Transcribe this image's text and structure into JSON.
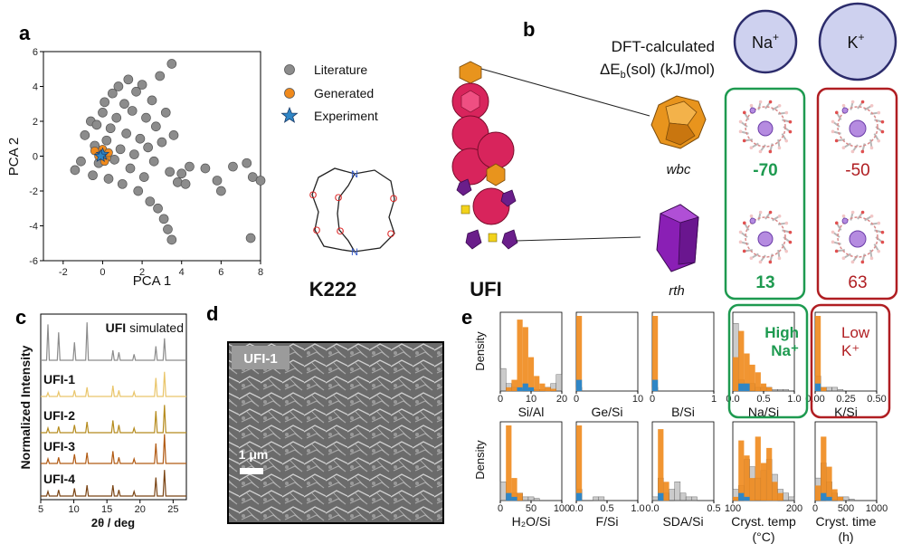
{
  "panels": {
    "a": "a",
    "b": "b",
    "c": "c",
    "d": "d",
    "e": "e"
  },
  "colors": {
    "literature": "#8c8c8c",
    "generated": "#f08a1c",
    "experiment": "#2f86c6",
    "green": "#1e9a50",
    "red": "#b01e22",
    "ion_fill": "#ced1ef",
    "ion_stroke": "#2c2c6c"
  },
  "chart_data": [
    {
      "id": "pca",
      "type": "scatter",
      "xlabel": "PCA 1",
      "ylabel": "PCA 2",
      "xlim": [
        -3,
        8
      ],
      "ylim": [
        -6,
        6
      ],
      "xticks": [
        "-2",
        "0",
        "2",
        "4",
        "6",
        "8"
      ],
      "yticks": [
        "-6",
        "-4",
        "-2",
        "0",
        "2",
        "4",
        "6"
      ],
      "legend": [
        "Literature",
        "Generated",
        "Experiment"
      ],
      "literature": [
        [
          -1.4,
          -0.8
        ],
        [
          -1.1,
          -0.3
        ],
        [
          -0.9,
          1.2
        ],
        [
          -0.6,
          2.0
        ],
        [
          -0.5,
          -1.1
        ],
        [
          -0.4,
          0.6
        ],
        [
          -0.3,
          1.8
        ],
        [
          -0.2,
          -0.4
        ],
        [
          0.0,
          2.5
        ],
        [
          0.1,
          3.1
        ],
        [
          0.2,
          0.9
        ],
        [
          0.3,
          -1.3
        ],
        [
          0.4,
          1.6
        ],
        [
          0.5,
          3.6
        ],
        [
          0.6,
          -0.2
        ],
        [
          0.7,
          2.2
        ],
        [
          0.8,
          4.0
        ],
        [
          0.9,
          0.4
        ],
        [
          1.0,
          -1.6
        ],
        [
          1.1,
          3.0
        ],
        [
          1.2,
          1.3
        ],
        [
          1.3,
          4.4
        ],
        [
          1.4,
          -0.7
        ],
        [
          1.5,
          2.6
        ],
        [
          1.6,
          0.1
        ],
        [
          1.7,
          3.7
        ],
        [
          1.8,
          -2.0
        ],
        [
          1.9,
          1.0
        ],
        [
          2.0,
          4.1
        ],
        [
          2.1,
          -1.2
        ],
        [
          2.2,
          2.2
        ],
        [
          2.3,
          0.5
        ],
        [
          2.4,
          -2.6
        ],
        [
          2.5,
          3.2
        ],
        [
          2.6,
          -0.3
        ],
        [
          2.7,
          1.7
        ],
        [
          2.8,
          -3.0
        ],
        [
          2.9,
          4.6
        ],
        [
          3.0,
          0.8
        ],
        [
          3.1,
          -3.6
        ],
        [
          3.2,
          2.5
        ],
        [
          3.3,
          -4.2
        ],
        [
          3.4,
          -0.9
        ],
        [
          3.5,
          5.3
        ],
        [
          3.5,
          -4.8
        ],
        [
          3.6,
          1.2
        ],
        [
          3.8,
          -1.5
        ],
        [
          4.0,
          -1.0
        ],
        [
          4.2,
          -1.6
        ],
        [
          4.4,
          -0.6
        ],
        [
          5.2,
          -0.7
        ],
        [
          5.8,
          -1.4
        ],
        [
          6.0,
          -2.0
        ],
        [
          6.6,
          -0.6
        ],
        [
          7.3,
          -0.4
        ],
        [
          7.5,
          -4.7
        ],
        [
          7.6,
          -1.2
        ],
        [
          8.0,
          -1.4
        ]
      ],
      "generated": [
        [
          -0.4,
          0.3
        ],
        [
          -0.2,
          0.0
        ],
        [
          0.0,
          0.4
        ],
        [
          0.2,
          -0.1
        ],
        [
          0.3,
          0.2
        ],
        [
          0.1,
          -0.3
        ]
      ],
      "experiment": [
        [
          0.0,
          0.1
        ],
        [
          -0.1,
          0.0
        ]
      ]
    },
    {
      "id": "density",
      "type": "histogram",
      "ylabel": "Density",
      "subplots": [
        {
          "xlabel": "Si/Al",
          "xticks": [
            "0",
            "10",
            "20"
          ],
          "gray": [
            0.3,
            0.1,
            0.05,
            0.02,
            0.02,
            0.02,
            0.02,
            0.02,
            0.05,
            0.1,
            0.22
          ],
          "orange": [
            0,
            0.05,
            0.15,
            0.95,
            0.85,
            0.45,
            0.2,
            0.1,
            0.05,
            0.03,
            0
          ],
          "blue": [
            0,
            0,
            0,
            0.05,
            0.1,
            0.05,
            0,
            0,
            0,
            0,
            0
          ]
        },
        {
          "xlabel": "Ge/Si",
          "xticks": [
            "0",
            "10"
          ],
          "gray": [
            0.05,
            0,
            0,
            0,
            0,
            0,
            0,
            0,
            0,
            0,
            0
          ],
          "orange": [
            1.0,
            0,
            0,
            0,
            0,
            0,
            0,
            0,
            0,
            0,
            0
          ],
          "blue": [
            0.15,
            0,
            0,
            0,
            0,
            0,
            0,
            0,
            0,
            0,
            0
          ]
        },
        {
          "xlabel": "B/Si",
          "xticks": [
            "0",
            "1"
          ],
          "gray": [
            0.05,
            0,
            0,
            0,
            0,
            0,
            0,
            0,
            0,
            0,
            0
          ],
          "orange": [
            1.0,
            0,
            0,
            0,
            0,
            0,
            0,
            0,
            0,
            0,
            0
          ],
          "blue": [
            0.15,
            0,
            0,
            0,
            0,
            0,
            0,
            0,
            0,
            0,
            0
          ]
        },
        {
          "xlabel": "Na/Si",
          "xticks": [
            "0.0",
            "0.5",
            "1.0"
          ],
          "gray": [
            0.9,
            0.15,
            0.1,
            0.1,
            0.05,
            0.05,
            0.05,
            0.02,
            0.02,
            0.02,
            0
          ],
          "orange": [
            0.45,
            0.8,
            0.5,
            0.35,
            0.25,
            0.1,
            0.05,
            0,
            0,
            0,
            0
          ],
          "blue": [
            0,
            0.1,
            0.1,
            0,
            0,
            0,
            0,
            0,
            0,
            0,
            0
          ]
        },
        {
          "xlabel": "K/Si",
          "xticks": [
            "0.00",
            "0.25",
            "0.50"
          ],
          "gray": [
            0.2,
            0.05,
            0.05,
            0.05,
            0.02,
            0,
            0,
            0,
            0,
            0,
            0
          ],
          "orange": [
            1.0,
            0.05,
            0,
            0,
            0,
            0,
            0,
            0,
            0,
            0,
            0
          ],
          "blue": [
            0.1,
            0,
            0,
            0,
            0,
            0,
            0,
            0,
            0,
            0,
            0
          ]
        },
        {
          "xlabel": "H₂O/Si",
          "xticks": [
            "0",
            "50",
            "100"
          ],
          "gray": [
            0.25,
            0.05,
            0.1,
            0.1,
            0.05,
            0.05,
            0.03,
            0,
            0,
            0,
            0
          ],
          "orange": [
            0,
            1.0,
            0.3,
            0.1,
            0,
            0,
            0,
            0,
            0,
            0,
            0
          ],
          "blue": [
            0,
            0.1,
            0.05,
            0,
            0,
            0,
            0,
            0,
            0,
            0,
            0
          ]
        },
        {
          "xlabel": "F/Si",
          "xticks": [
            "0.0",
            "0.5",
            "1.0"
          ],
          "gray": [
            0.15,
            0,
            0,
            0.05,
            0.05,
            0,
            0,
            0,
            0,
            0,
            0
          ],
          "orange": [
            1.0,
            0,
            0,
            0,
            0,
            0,
            0,
            0,
            0,
            0,
            0
          ],
          "blue": [
            0.1,
            0,
            0,
            0,
            0,
            0,
            0,
            0,
            0,
            0,
            0
          ]
        },
        {
          "xlabel": "SDA/Si",
          "xticks": [
            "0.0",
            "0.5"
          ],
          "gray": [
            0.05,
            0.3,
            0.1,
            0.15,
            0.25,
            0.1,
            0.05,
            0.05,
            0,
            0,
            0
          ],
          "orange": [
            0,
            0.95,
            0.25,
            0,
            0,
            0,
            0,
            0,
            0,
            0,
            0
          ],
          "blue": [
            0,
            0.1,
            0,
            0,
            0,
            0,
            0,
            0,
            0,
            0,
            0
          ]
        },
        {
          "xlabel": "Cryst. temp",
          "xlabel2": "(°C)",
          "xticks": [
            "100",
            "200"
          ],
          "gray": [
            0.15,
            0.2,
            0.55,
            0.45,
            0.3,
            0.4,
            0.55,
            0.35,
            0.15,
            0.1,
            0.05
          ],
          "orange": [
            0.05,
            0.8,
            0.6,
            0.3,
            0.85,
            0.5,
            0.7,
            0.25,
            0.1,
            0,
            0
          ],
          "blue": [
            0,
            0.1,
            0.05,
            0,
            0,
            0,
            0,
            0,
            0,
            0,
            0
          ]
        },
        {
          "xlabel": "Cryst. time",
          "xlabel2": "(h)",
          "xticks": [
            "0",
            "500",
            "1000"
          ],
          "gray": [
            0.3,
            0.5,
            0.25,
            0.1,
            0.05,
            0.05,
            0.02,
            0,
            0,
            0,
            0
          ],
          "orange": [
            0.2,
            0.85,
            0.45,
            0.15,
            0.05,
            0,
            0,
            0,
            0,
            0,
            0
          ],
          "blue": [
            0,
            0.1,
            0.05,
            0,
            0,
            0,
            0,
            0,
            0,
            0,
            0
          ]
        }
      ],
      "annotations": {
        "na": [
          "High",
          "Na⁺"
        ],
        "k": [
          "Low",
          "K⁺"
        ]
      }
    },
    {
      "id": "pxrd",
      "type": "line",
      "ylabel": "Normalized Intensity",
      "xlabel": "2θ / deg",
      "xlim": [
        5,
        27
      ],
      "xticks": [
        "5",
        "10",
        "15",
        "20",
        "25"
      ],
      "peaks": [
        6.1,
        7.7,
        10.1,
        12.0,
        15.9,
        16.8,
        19.1,
        22.4,
        23.7
      ],
      "simulated_heights": [
        0.9,
        0.7,
        0.45,
        0.95,
        0.25,
        0.2,
        0.15,
        0.35,
        0.55
      ],
      "series": [
        {
          "name": "UFI-1",
          "color": "#e9c56a",
          "heights": [
            0.12,
            0.15,
            0.2,
            0.3,
            0.35,
            0.2,
            0.15,
            0.6,
            0.8
          ]
        },
        {
          "name": "UFI-2",
          "color": "#b58b1d",
          "heights": [
            0.15,
            0.2,
            0.25,
            0.35,
            0.4,
            0.25,
            0.15,
            0.7,
            0.9
          ]
        },
        {
          "name": "UFI-3",
          "color": "#b15a13",
          "heights": [
            0.15,
            0.2,
            0.3,
            0.35,
            0.4,
            0.2,
            0.15,
            0.65,
            0.95
          ]
        },
        {
          "name": "UFI-4",
          "color": "#7a4414",
          "heights": [
            0.15,
            0.2,
            0.25,
            0.35,
            0.35,
            0.2,
            0.15,
            0.6,
            0.85
          ]
        }
      ]
    }
  ],
  "legend": {
    "literature": "Literature",
    "generated": "Generated",
    "experiment": "Experiment"
  },
  "molecule": {
    "label": "K222",
    "n_atom": "N",
    "o_atom": "O"
  },
  "framework": {
    "label": "UFI"
  },
  "dft": {
    "title": "DFT-calculated",
    "subtitle_pre": "ΔE",
    "subtitle_sub": "b",
    "subtitle_post": "(sol) (kJ/mol)",
    "cage1": "wbc",
    "cage2": "rth"
  },
  "ions": {
    "na_base": "Na",
    "k_base": "K",
    "sup": "+"
  },
  "values": {
    "na_wbc": "-70",
    "na_rth": "13",
    "k_wbc": "-50",
    "k_rth": "63"
  },
  "pxrd_sim": {
    "bold": "UFI",
    "rest": " simulated"
  },
  "sem": {
    "label": "UFI-1",
    "scale": "1 μm"
  }
}
